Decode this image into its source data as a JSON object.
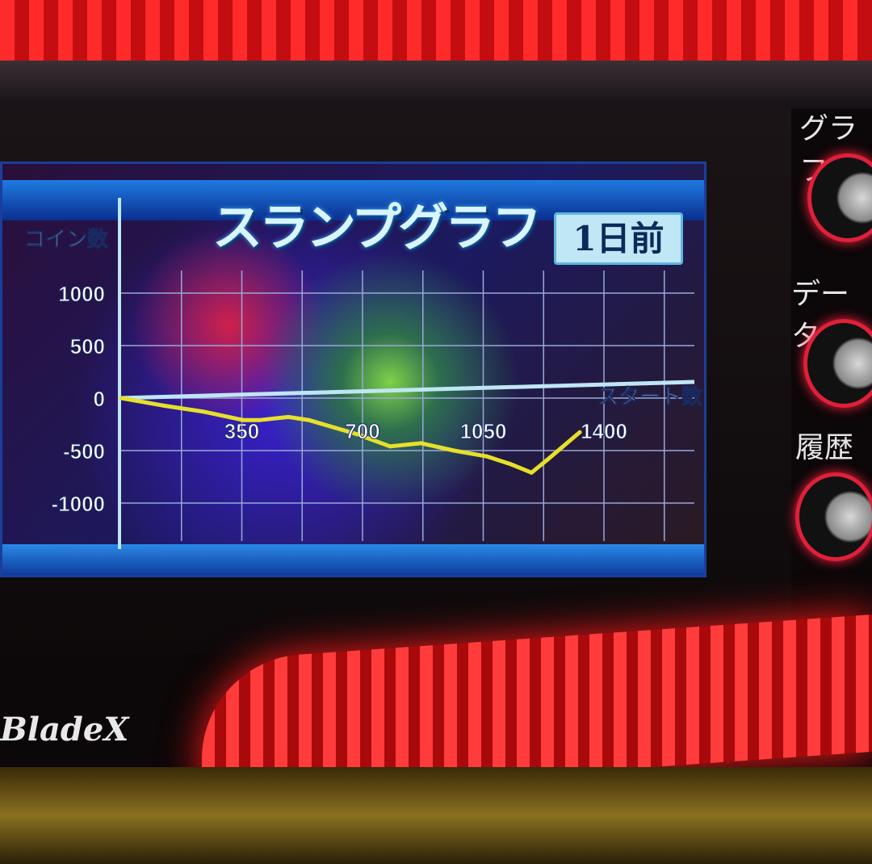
{
  "screen": {
    "title": "スランプグラフ",
    "badge": "1日前"
  },
  "buttons": [
    {
      "label": "グラフ"
    },
    {
      "label": "データ"
    },
    {
      "label": "履歴"
    }
  ],
  "logo": "BladeX",
  "colors": {
    "line": "#e6e02a",
    "axis": "#bfe6f5",
    "grid": "#9aa8d8"
  },
  "chart_data": {
    "type": "line",
    "title": "スランプグラフ",
    "xlabel": "スタート数",
    "ylabel": "コイン数",
    "xlim": [
      0,
      1400
    ],
    "ylim": [
      -1000,
      1000
    ],
    "xticks": [
      350,
      700,
      1050,
      1400
    ],
    "yticks": [
      1000,
      500,
      0,
      -500,
      -1000
    ],
    "grid": true,
    "series": [
      {
        "x": [
          0,
          120,
          240,
          355,
          400,
          485,
          545,
          685,
          780,
          870,
          965,
          1060,
          1130,
          1190,
          1235,
          1330
        ],
        "y": [
          0,
          -70,
          -130,
          -210,
          -210,
          -180,
          -210,
          -345,
          -460,
          -430,
          -500,
          -555,
          -630,
          -710,
          -590,
          -325
        ]
      }
    ]
  }
}
